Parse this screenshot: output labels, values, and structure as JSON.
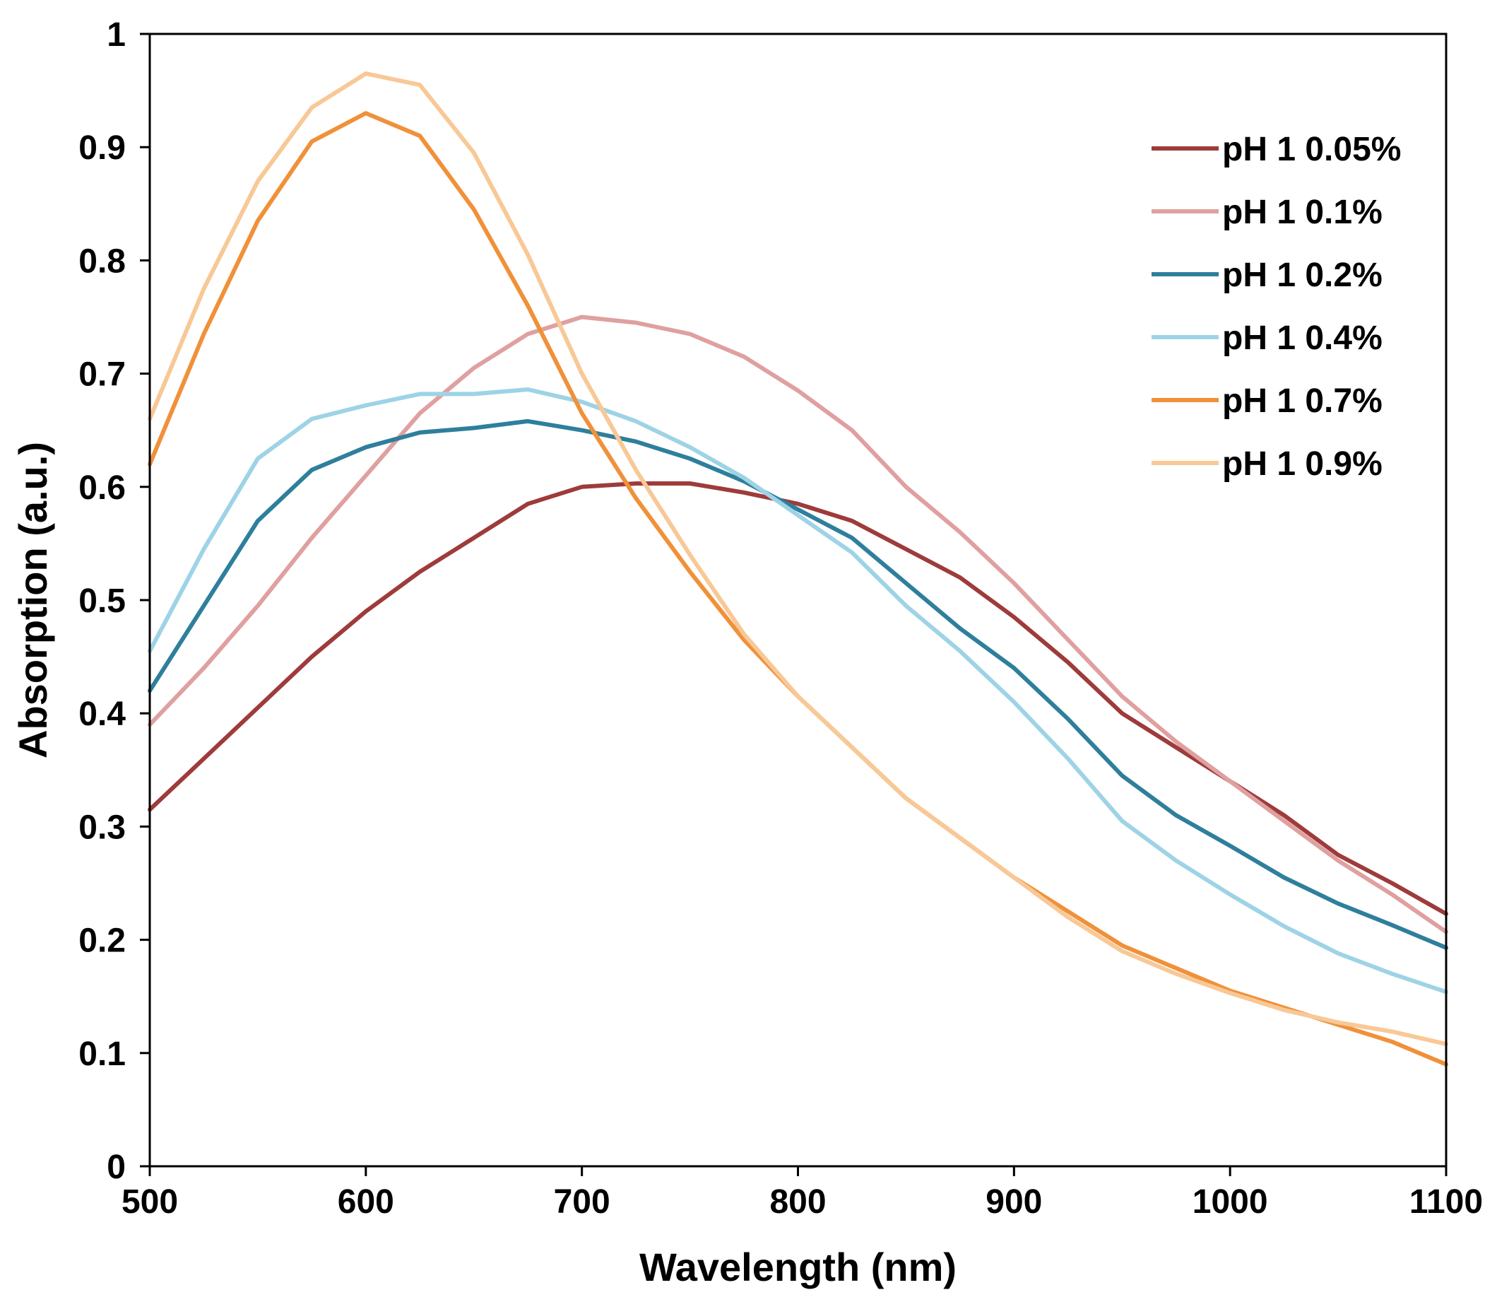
{
  "chart_data": {
    "type": "line",
    "title": "",
    "xlabel": "Wavelength (nm)",
    "ylabel": "Absorption (a.u.)",
    "xlim": [
      500,
      1100
    ],
    "ylim": [
      0,
      1
    ],
    "xticks": [
      "500",
      "600",
      "700",
      "800",
      "900",
      "1000",
      "1100"
    ],
    "yticks": [
      "0",
      "0.1",
      "0.2",
      "0.3",
      "0.4",
      "0.5",
      "0.6",
      "0.7",
      "0.8",
      "0.9",
      "1"
    ],
    "grid": false,
    "legend_position": "top-right",
    "x": [
      500,
      525,
      550,
      575,
      600,
      625,
      650,
      675,
      700,
      725,
      750,
      775,
      800,
      825,
      850,
      875,
      900,
      925,
      950,
      975,
      1000,
      1025,
      1050,
      1075,
      1100
    ],
    "series": [
      {
        "name": "pH 1 0.05%",
        "color": "#9e3b3b",
        "values": [
          0.315,
          0.36,
          0.405,
          0.45,
          0.49,
          0.525,
          0.555,
          0.585,
          0.6,
          0.603,
          0.603,
          0.595,
          0.585,
          0.57,
          0.545,
          0.52,
          0.485,
          0.445,
          0.4,
          0.37,
          0.34,
          0.31,
          0.275,
          0.25,
          0.223
        ]
      },
      {
        "name": "pH 1 0.1%",
        "color": "#e0a0a0",
        "values": [
          0.39,
          0.44,
          0.495,
          0.555,
          0.61,
          0.665,
          0.705,
          0.735,
          0.75,
          0.745,
          0.735,
          0.715,
          0.685,
          0.65,
          0.6,
          0.56,
          0.515,
          0.465,
          0.415,
          0.375,
          0.34,
          0.305,
          0.27,
          0.24,
          0.207
        ]
      },
      {
        "name": "pH 1 0.2%",
        "color": "#2e7f9c",
        "values": [
          0.42,
          0.495,
          0.57,
          0.615,
          0.635,
          0.648,
          0.652,
          0.658,
          0.65,
          0.64,
          0.625,
          0.605,
          0.58,
          0.555,
          0.515,
          0.475,
          0.44,
          0.395,
          0.345,
          0.31,
          0.283,
          0.255,
          0.232,
          0.213,
          0.193
        ]
      },
      {
        "name": "pH 1 0.4%",
        "color": "#9ed3e6",
        "values": [
          0.455,
          0.545,
          0.625,
          0.66,
          0.672,
          0.682,
          0.682,
          0.686,
          0.675,
          0.658,
          0.635,
          0.608,
          0.575,
          0.542,
          0.495,
          0.455,
          0.41,
          0.36,
          0.305,
          0.27,
          0.24,
          0.212,
          0.188,
          0.17,
          0.154
        ]
      },
      {
        "name": "pH 1 0.7%",
        "color": "#f0913a",
        "values": [
          0.62,
          0.735,
          0.835,
          0.905,
          0.93,
          0.91,
          0.845,
          0.76,
          0.665,
          0.59,
          0.525,
          0.465,
          0.415,
          0.37,
          0.325,
          0.29,
          0.255,
          0.225,
          0.195,
          0.175,
          0.155,
          0.14,
          0.125,
          0.11,
          0.09
        ]
      },
      {
        "name": "pH 1 0.9%",
        "color": "#f8c896",
        "values": [
          0.66,
          0.775,
          0.87,
          0.935,
          0.965,
          0.955,
          0.895,
          0.805,
          0.7,
          0.615,
          0.54,
          0.47,
          0.415,
          0.37,
          0.325,
          0.29,
          0.255,
          0.22,
          0.19,
          0.17,
          0.153,
          0.138,
          0.127,
          0.119,
          0.108
        ]
      }
    ]
  }
}
